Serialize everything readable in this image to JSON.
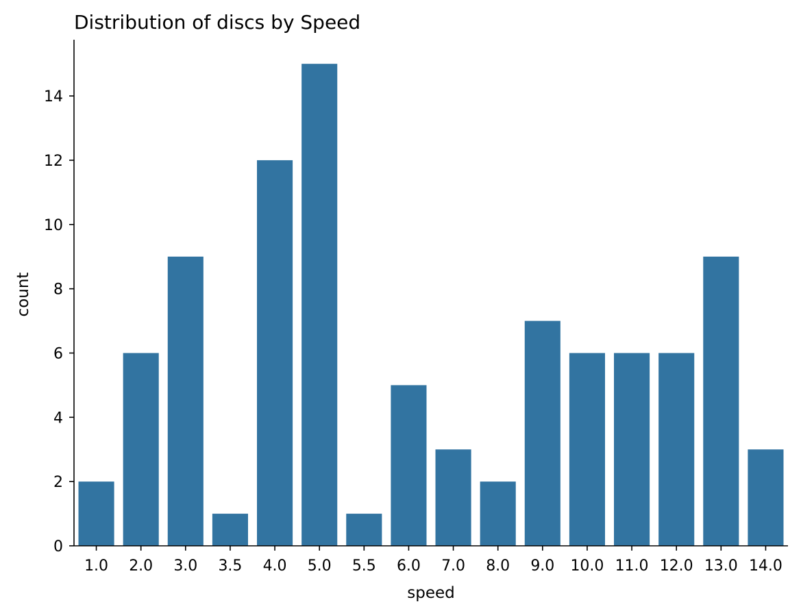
{
  "chart_data": {
    "type": "bar",
    "title": "Distribution of discs by Speed",
    "xlabel": "speed",
    "ylabel": "count",
    "categories": [
      "1.0",
      "2.0",
      "3.0",
      "3.5",
      "4.0",
      "5.0",
      "5.5",
      "6.0",
      "7.0",
      "8.0",
      "9.0",
      "10.0",
      "11.0",
      "12.0",
      "13.0",
      "14.0"
    ],
    "values": [
      2,
      6,
      9,
      1,
      12,
      15,
      1,
      5,
      3,
      2,
      7,
      6,
      6,
      6,
      9,
      3
    ],
    "ylim": [
      0,
      15.75
    ],
    "yticks": [
      "0",
      "2",
      "4",
      "6",
      "8",
      "10",
      "12",
      "14"
    ],
    "grid": false,
    "bar_color": "#3274a1",
    "axis_color": "#000000"
  }
}
